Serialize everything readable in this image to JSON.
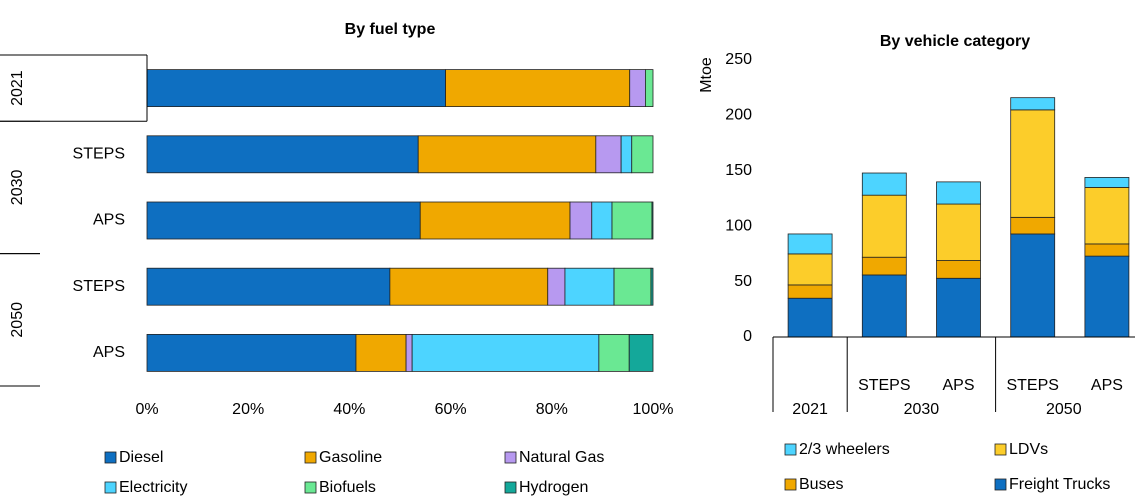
{
  "chart_data": [
    {
      "type": "bar",
      "orientation": "horizontal",
      "stacked": true,
      "title": "By fuel type",
      "groups": [
        {
          "name": "2021",
          "categories": [
            null
          ]
        },
        {
          "name": "2030",
          "categories": [
            "STEPS",
            "APS"
          ]
        },
        {
          "name": "2050",
          "categories": [
            "STEPS",
            "APS"
          ]
        }
      ],
      "series": [
        {
          "name": "Diesel",
          "color": "#0e6fc1",
          "values": [
            59,
            53.6,
            54,
            48,
            41.3
          ]
        },
        {
          "name": "Gasoline",
          "color": "#f0a800",
          "values": [
            36.4,
            35.1,
            29.6,
            31.2,
            9.9
          ]
        },
        {
          "name": "Natural Gas",
          "color": "#b799f0",
          "values": [
            3.1,
            5,
            4.3,
            3.4,
            1.2
          ]
        },
        {
          "name": "Electricity",
          "color": "#4dd4ff",
          "values": [
            0,
            2.1,
            4,
            9.7,
            36.9
          ]
        },
        {
          "name": "Biofuels",
          "color": "#6ae893",
          "values": [
            1.5,
            4.2,
            7.9,
            7.3,
            6
          ]
        },
        {
          "name": "Hydrogen",
          "color": "#14a89a",
          "values": [
            0,
            0,
            0.2,
            0.4,
            4.7
          ]
        }
      ],
      "xlim": [
        0,
        100
      ],
      "xticks": [
        {
          "value": 0,
          "label": "0%"
        },
        {
          "value": 20,
          "label": "20%"
        },
        {
          "value": 40,
          "label": "40%"
        },
        {
          "value": 60,
          "label": "60%"
        },
        {
          "value": 80,
          "label": "80%"
        },
        {
          "value": 100,
          "label": "100%"
        }
      ],
      "grid": false,
      "legend": "bottom"
    },
    {
      "type": "bar",
      "orientation": "vertical",
      "stacked": true,
      "title": "By vehicle category",
      "y_label": "Mtoe",
      "groups": [
        {
          "name": "2021",
          "categories": [
            null
          ]
        },
        {
          "name": "2030",
          "categories": [
            "STEPS",
            "APS"
          ]
        },
        {
          "name": "2050",
          "categories": [
            "STEPS",
            "APS"
          ]
        }
      ],
      "series": [
        {
          "name": "Freight Trucks",
          "color": "#0e6fc1",
          "values": [
            35,
            56,
            53,
            93,
            73
          ]
        },
        {
          "name": "Buses",
          "color": "#f0a800",
          "values": [
            12,
            16,
            16,
            15,
            11
          ]
        },
        {
          "name": "LDVs",
          "color": "#fccd2a",
          "values": [
            28,
            56,
            51,
            97,
            51
          ]
        },
        {
          "name": "2/3 wheelers",
          "color": "#4dd4ff",
          "values": [
            18,
            20,
            20,
            11,
            9
          ]
        }
      ],
      "ylim": [
        0,
        250
      ],
      "yticks": [
        0,
        50,
        100,
        150,
        200,
        250
      ],
      "grid": false,
      "legend": "bottom"
    }
  ]
}
